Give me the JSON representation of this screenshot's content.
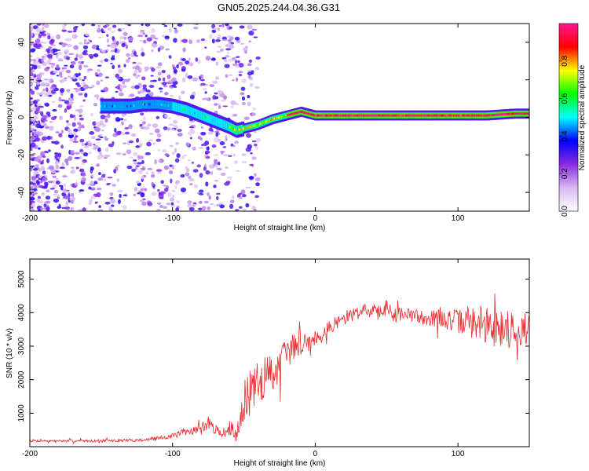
{
  "title": "GN05.2025.244.04.36.G31",
  "spectrogram": {
    "type": "heatmap",
    "xlabel": "Height of straight line (km)",
    "ylabel": "Frequency (Hz)",
    "xlim": [
      -200,
      150
    ],
    "ylim": [
      -50,
      50
    ],
    "xticks": [
      -200,
      -100,
      0,
      100
    ],
    "yticks": [
      -40,
      -20,
      0,
      20,
      40
    ],
    "ridge": {
      "x": [
        -150,
        -140,
        -130,
        -120,
        -110,
        -100,
        -90,
        -80,
        -70,
        -60,
        -55,
        -50,
        -40,
        -30,
        -20,
        -15,
        -10,
        -5,
        0,
        10,
        20,
        40,
        60,
        80,
        100,
        120,
        140,
        150
      ],
      "freq": [
        6,
        6,
        6,
        7,
        7,
        6,
        4,
        1,
        -2,
        -5,
        -7,
        -6,
        -4,
        -1,
        1,
        2,
        3,
        2,
        1,
        1,
        1,
        1,
        1,
        1,
        1,
        1,
        2,
        2
      ]
    },
    "colorbar": {
      "label": "Normalized spectral amplitude",
      "ticks": [
        0.0,
        0.2,
        0.4,
        0.6,
        0.8
      ],
      "tick_labels": [
        "0.0",
        "0.2",
        "0.4",
        "0.6",
        "0.8"
      ],
      "range": [
        0,
        1
      ],
      "stops": [
        "#ffffff",
        "#d8b8f0",
        "#8a2be2",
        "#0000ff",
        "#00ffff",
        "#00ff00",
        "#ffff00",
        "#ff0000",
        "#ff1493"
      ]
    }
  },
  "chart_data": {
    "type": "line",
    "title": "GN05.2025.244.04.36.G31",
    "xlabel": "Height of straight line (km)",
    "ylabel": "SNR (10 * v/v)",
    "xlim": [
      -200,
      150
    ],
    "ylim": [
      0,
      5600
    ],
    "xticks": [
      -200,
      -100,
      0,
      100
    ],
    "yticks": [
      1000,
      2000,
      3000,
      4000,
      5000
    ],
    "series": [
      {
        "name": "SNR",
        "color": "#e8282b",
        "x": [
          -200,
          -180,
          -160,
          -140,
          -120,
          -110,
          -100,
          -90,
          -80,
          -75,
          -70,
          -65,
          -60,
          -55,
          -50,
          -45,
          -40,
          -35,
          -30,
          -25,
          -20,
          -15,
          -10,
          -5,
          0,
          10,
          20,
          30,
          40,
          50,
          60,
          70,
          80,
          90,
          100,
          110,
          120,
          130,
          140,
          150
        ],
        "mean": [
          180,
          170,
          175,
          180,
          200,
          260,
          320,
          450,
          550,
          700,
          500,
          420,
          450,
          430,
          1350,
          1550,
          1850,
          2100,
          2200,
          2500,
          2750,
          3000,
          3100,
          3150,
          3250,
          3550,
          3850,
          4050,
          4100,
          4050,
          3950,
          3900,
          3850,
          3800,
          3750,
          3700,
          3600,
          3550,
          3500,
          3500
        ],
        "noise": [
          40,
          40,
          40,
          45,
          50,
          60,
          80,
          120,
          150,
          180,
          140,
          130,
          150,
          180,
          600,
          650,
          700,
          650,
          600,
          550,
          500,
          400,
          350,
          300,
          250,
          200,
          180,
          160,
          160,
          170,
          200,
          220,
          250,
          300,
          350,
          450,
          550,
          600,
          550,
          500
        ]
      }
    ]
  }
}
